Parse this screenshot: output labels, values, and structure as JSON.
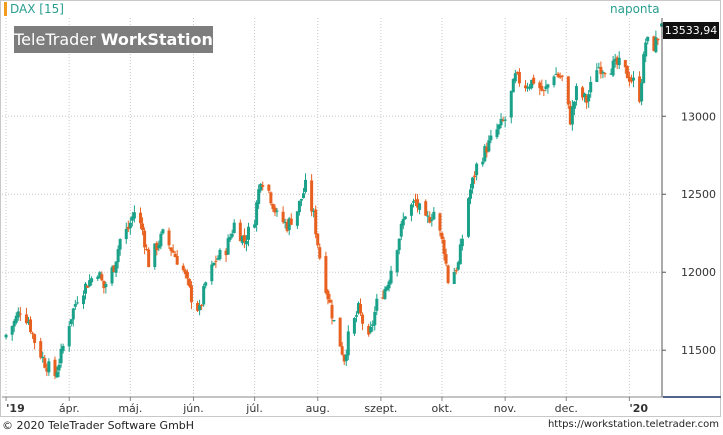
{
  "window": {
    "instrument": "DAX [15]",
    "logo_part1": "TeleTrader ",
    "logo_part2": "WorkStation",
    "period": "naponta"
  },
  "footer": {
    "copyright": "© 2020  TeleTrader Software GmbH",
    "url": "https://workstation.teletrader.com"
  },
  "colors": {
    "up": "#1aa18a",
    "down": "#e8601f",
    "grid": "#c8c8c8",
    "last_box": "#111111"
  },
  "chart_data": {
    "type": "candlestick",
    "last_value_label": "13533,94",
    "last_value": 13533.94,
    "y_ticks": [
      11500,
      12000,
      12500,
      13000
    ],
    "y_tick_labels": [
      "11500",
      "12000",
      "12500",
      "13000"
    ],
    "ylim": [
      11200,
      13630
    ],
    "x_tick_labels": [
      "'19",
      "ápr.",
      "máj.",
      "jún.",
      "júl.",
      "aug.",
      "szept.",
      "okt.",
      "nov.",
      "dec.",
      "'20"
    ],
    "x_tick_dates": [
      "2019-03-01",
      "2019-04-01",
      "2019-05-01",
      "2019-06-01",
      "2019-07-01",
      "2019-08-01",
      "2019-09-01",
      "2019-10-01",
      "2019-11-01",
      "2019-12-01",
      "2020-01-01"
    ],
    "xlim": [
      "2019-02-27",
      "2020-01-17"
    ],
    "grid": true,
    "ohlc_closes": [
      {
        "x": "2019-03-01",
        "c": 11600
      },
      {
        "x": "2019-03-05",
        "c": 11680
      },
      {
        "x": "2019-03-08",
        "c": 11760
      },
      {
        "x": "2019-03-12",
        "c": 11690
      },
      {
        "x": "2019-03-15",
        "c": 11560
      },
      {
        "x": "2019-03-20",
        "c": 11420
      },
      {
        "x": "2019-03-25",
        "c": 11340
      },
      {
        "x": "2019-03-28",
        "c": 11470
      },
      {
        "x": "2019-04-01",
        "c": 11680
      },
      {
        "x": "2019-04-05",
        "c": 11840
      },
      {
        "x": "2019-04-10",
        "c": 11930
      },
      {
        "x": "2019-04-15",
        "c": 12010
      },
      {
        "x": "2019-04-18",
        "c": 11900
      },
      {
        "x": "2019-04-23",
        "c": 12040
      },
      {
        "x": "2019-04-26",
        "c": 12210
      },
      {
        "x": "2019-04-30",
        "c": 12280
      },
      {
        "x": "2019-05-03",
        "c": 12390
      },
      {
        "x": "2019-05-07",
        "c": 12270
      },
      {
        "x": "2019-05-10",
        "c": 12060
      },
      {
        "x": "2019-05-14",
        "c": 12170
      },
      {
        "x": "2019-05-17",
        "c": 12240
      },
      {
        "x": "2019-05-22",
        "c": 12130
      },
      {
        "x": "2019-05-27",
        "c": 12010
      },
      {
        "x": "2019-05-31",
        "c": 11840
      },
      {
        "x": "2019-06-04",
        "c": 11750
      },
      {
        "x": "2019-06-07",
        "c": 11930
      },
      {
        "x": "2019-06-12",
        "c": 12080
      },
      {
        "x": "2019-06-17",
        "c": 12150
      },
      {
        "x": "2019-06-21",
        "c": 12310
      },
      {
        "x": "2019-06-26",
        "c": 12200
      },
      {
        "x": "2019-07-01",
        "c": 12350
      },
      {
        "x": "2019-07-04",
        "c": 12610
      },
      {
        "x": "2019-07-08",
        "c": 12520
      },
      {
        "x": "2019-07-12",
        "c": 12360
      },
      {
        "x": "2019-07-17",
        "c": 12300
      },
      {
        "x": "2019-07-22",
        "c": 12400
      },
      {
        "x": "2019-07-26",
        "c": 12550
      },
      {
        "x": "2019-07-30",
        "c": 12360
      },
      {
        "x": "2019-08-02",
        "c": 12100
      },
      {
        "x": "2019-08-06",
        "c": 11850
      },
      {
        "x": "2019-08-09",
        "c": 11680
      },
      {
        "x": "2019-08-14",
        "c": 11450
      },
      {
        "x": "2019-08-16",
        "c": 11580
      },
      {
        "x": "2019-08-21",
        "c": 11760
      },
      {
        "x": "2019-08-26",
        "c": 11560
      },
      {
        "x": "2019-08-30",
        "c": 11800
      },
      {
        "x": "2019-09-04",
        "c": 11920
      },
      {
        "x": "2019-09-09",
        "c": 12180
      },
      {
        "x": "2019-09-13",
        "c": 12380
      },
      {
        "x": "2019-09-18",
        "c": 12450
      },
      {
        "x": "2019-09-23",
        "c": 12320
      },
      {
        "x": "2019-09-27",
        "c": 12390
      },
      {
        "x": "2019-10-02",
        "c": 12150
      },
      {
        "x": "2019-10-04",
        "c": 11950
      },
      {
        "x": "2019-10-09",
        "c": 12050
      },
      {
        "x": "2019-10-14",
        "c": 12480
      },
      {
        "x": "2019-10-18",
        "c": 12680
      },
      {
        "x": "2019-10-23",
        "c": 12800
      },
      {
        "x": "2019-10-28",
        "c": 12910
      },
      {
        "x": "2019-11-01",
        "c": 12980
      },
      {
        "x": "2019-11-06",
        "c": 13250
      },
      {
        "x": "2019-11-11",
        "c": 13200
      },
      {
        "x": "2019-11-15",
        "c": 13230
      },
      {
        "x": "2019-11-20",
        "c": 13150
      },
      {
        "x": "2019-11-25",
        "c": 13280
      },
      {
        "x": "2019-11-29",
        "c": 13240
      },
      {
        "x": "2019-12-03",
        "c": 12980
      },
      {
        "x": "2019-12-06",
        "c": 13160
      },
      {
        "x": "2019-12-11",
        "c": 13100
      },
      {
        "x": "2019-12-16",
        "c": 13320
      },
      {
        "x": "2019-12-20",
        "c": 13310
      },
      {
        "x": "2019-12-27",
        "c": 13330
      },
      {
        "x": "2020-01-03",
        "c": 13220
      },
      {
        "x": "2020-01-06",
        "c": 13130
      },
      {
        "x": "2020-01-09",
        "c": 13480
      },
      {
        "x": "2020-01-13",
        "c": 13450
      },
      {
        "x": "2020-01-16",
        "c": 13534
      }
    ]
  }
}
